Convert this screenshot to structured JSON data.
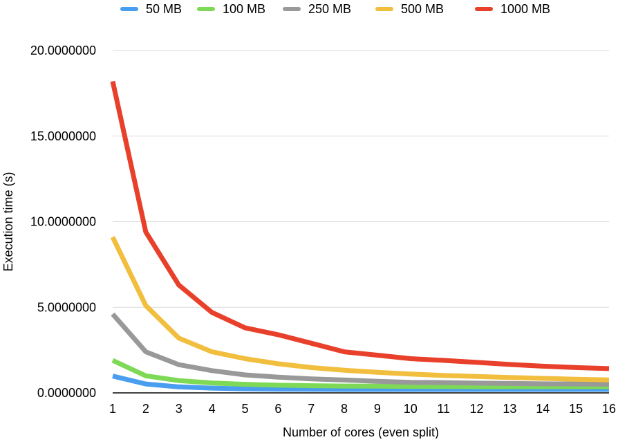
{
  "chart_data": {
    "type": "line",
    "xlabel": "Number of cores (even split)",
    "ylabel": "Execution time (s)",
    "ylim": [
      0,
      20
    ],
    "y_ticks": [
      "0.0000000",
      "5.0000000",
      "10.0000000",
      "15.0000000",
      "20.0000000"
    ],
    "y_tick_values": [
      0,
      5,
      10,
      15,
      20
    ],
    "categories": [
      "1",
      "2",
      "3",
      "4",
      "5",
      "6",
      "7",
      "8",
      "9",
      "10",
      "11",
      "12",
      "13",
      "14",
      "15",
      "16"
    ],
    "x": [
      1,
      2,
      3,
      4,
      5,
      6,
      7,
      8,
      9,
      10,
      11,
      12,
      13,
      14,
      15,
      16
    ],
    "grid": true,
    "legend_position": "top",
    "series": [
      {
        "name": "50 MB",
        "color": "#4A9EF0",
        "values": [
          0.98,
          0.52,
          0.35,
          0.28,
          0.24,
          0.22,
          0.21,
          0.2,
          0.2,
          0.2,
          0.2,
          0.2,
          0.2,
          0.2,
          0.2,
          0.2
        ]
      },
      {
        "name": "100 MB",
        "color": "#7ED957",
        "values": [
          1.9,
          1.0,
          0.72,
          0.58,
          0.5,
          0.45,
          0.42,
          0.4,
          0.39,
          0.38,
          0.37,
          0.36,
          0.36,
          0.36,
          0.36,
          0.36
        ]
      },
      {
        "name": "250 MB",
        "color": "#999999",
        "values": [
          4.6,
          2.4,
          1.65,
          1.3,
          1.05,
          0.92,
          0.82,
          0.75,
          0.68,
          0.62,
          0.6,
          0.57,
          0.55,
          0.53,
          0.52,
          0.51
        ]
      },
      {
        "name": "500 MB",
        "color": "#F1BE3E",
        "values": [
          9.1,
          5.1,
          3.2,
          2.4,
          2.0,
          1.7,
          1.48,
          1.32,
          1.2,
          1.1,
          1.02,
          0.96,
          0.9,
          0.85,
          0.8,
          0.76
        ]
      },
      {
        "name": "1000 MB",
        "color": "#E8402A",
        "values": [
          18.2,
          9.4,
          6.3,
          4.7,
          3.8,
          3.4,
          2.9,
          2.4,
          2.2,
          2.0,
          1.9,
          1.78,
          1.66,
          1.56,
          1.48,
          1.42
        ]
      }
    ]
  }
}
